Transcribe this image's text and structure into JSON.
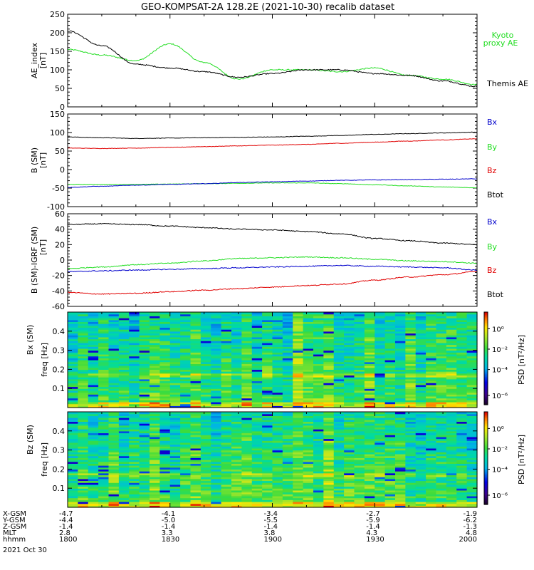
{
  "title": "GEO-KOMPSAT-2A 128.2E (2021-10-30) recalib dataset",
  "colors": {
    "black": "#000000",
    "red": "#e00000",
    "green": "#22dd22",
    "blue": "#0000cc"
  },
  "chart_data": [
    {
      "type": "line",
      "ylabel": "AE_index [nT]",
      "ylim": [
        0,
        250
      ],
      "yticks": [
        "0",
        "50",
        "100",
        "150",
        "200",
        "250"
      ],
      "x": [
        "1800",
        "1810",
        "1820",
        "1830",
        "1840",
        "1850",
        "1900",
        "1910",
        "1920",
        "1930",
        "1940",
        "1950",
        "2000"
      ],
      "series": [
        {
          "name": "Kyoto proxy AE",
          "color": "#22dd22",
          "values": [
            155,
            140,
            125,
            170,
            120,
            75,
            100,
            100,
            95,
            105,
            85,
            75,
            60
          ]
        },
        {
          "name": "Themis AE",
          "color": "#000000",
          "values": [
            205,
            165,
            115,
            105,
            95,
            80,
            90,
            100,
            100,
            90,
            85,
            70,
            55
          ]
        }
      ]
    },
    {
      "type": "line",
      "ylabel": "B (SM) [nT]",
      "ylim": [
        -100,
        150
      ],
      "yticks": [
        "-100",
        "-50",
        "0",
        "50",
        "100",
        "150"
      ],
      "legend": [
        "Bx",
        "By",
        "Bz",
        "Btot"
      ],
      "series": [
        {
          "name": "Btot",
          "color": "#000000",
          "values": [
            88,
            86,
            84,
            85,
            86,
            87,
            88,
            90,
            92,
            95,
            97,
            99,
            101
          ]
        },
        {
          "name": "Bz",
          "color": "#e00000",
          "values": [
            58,
            57,
            58,
            60,
            62,
            64,
            66,
            68,
            71,
            74,
            77,
            80,
            83
          ]
        },
        {
          "name": "By",
          "color": "#22dd22",
          "values": [
            -40,
            -40,
            -40,
            -39,
            -38,
            -37,
            -36,
            -36,
            -38,
            -41,
            -44,
            -47,
            -49
          ]
        },
        {
          "name": "Bx",
          "color": "#0000cc",
          "values": [
            -48,
            -45,
            -42,
            -40,
            -38,
            -35,
            -33,
            -31,
            -29,
            -28,
            -27,
            -26,
            -25
          ]
        }
      ]
    },
    {
      "type": "line",
      "ylabel": "B (SM)-IGRF (SM) [nT]",
      "ylim": [
        -60,
        60
      ],
      "yticks": [
        "-60",
        "-40",
        "-20",
        "0",
        "20",
        "40",
        "60"
      ],
      "legend": [
        "Bx",
        "By",
        "Bz",
        "Btot"
      ],
      "series": [
        {
          "name": "Btot",
          "color": "#000000",
          "values": [
            46,
            47,
            46,
            44,
            42,
            40,
            39,
            37,
            34,
            28,
            25,
            22,
            20
          ]
        },
        {
          "name": "By",
          "color": "#22dd22",
          "values": [
            -11,
            -9,
            -6,
            -4,
            -1,
            2,
            3,
            4,
            3,
            1,
            -1,
            -2,
            -4
          ]
        },
        {
          "name": "Bx",
          "color": "#0000cc",
          "values": [
            -15,
            -14,
            -13,
            -12,
            -11,
            -10,
            -9,
            -8,
            -7,
            -8,
            -9,
            -10,
            -13
          ]
        },
        {
          "name": "Bz",
          "color": "#e00000",
          "values": [
            -42,
            -44,
            -43,
            -41,
            -39,
            -37,
            -35,
            -33,
            -31,
            -26,
            -22,
            -19,
            -15
          ]
        }
      ]
    },
    {
      "type": "heatmap",
      "ylabel": "Bx (SM) freq [Hz]",
      "yticks": [
        "0.1",
        "0.2",
        "0.3",
        "0.4"
      ],
      "ylim": [
        0,
        0.5
      ],
      "colorbar_label": "PSD [nT²/Hz]",
      "colorbar_ticks": [
        "10⁰",
        "10⁻²",
        "10⁻⁴",
        "10⁻⁶"
      ]
    },
    {
      "type": "heatmap",
      "ylabel": "Bz (SM) freq [Hz]",
      "yticks": [
        "0.1",
        "0.2",
        "0.3",
        "0.4"
      ],
      "ylim": [
        0,
        0.5
      ],
      "colorbar_label": "PSD [nT²/Hz]",
      "colorbar_ticks": [
        "10⁰",
        "10⁻²",
        "10⁻⁴",
        "10⁻⁶"
      ]
    }
  ],
  "legend_ae": {
    "kyoto": "Kyoto\nproxy AE",
    "themis": "Themis AE"
  },
  "ephemeris": {
    "row_labels": [
      "X-GSM",
      "Y-GSM",
      "Z-GSM",
      "MLT",
      "hhmm"
    ],
    "columns": [
      [
        "-4.7",
        "-4.4",
        "-1.4",
        "2.8",
        "1800"
      ],
      [
        "-4.1",
        "-5.0",
        "-1.4",
        "3.3",
        "1830"
      ],
      [
        "-3.4",
        "-5.5",
        "-1.4",
        "3.8",
        "1900"
      ],
      [
        "-2.7",
        "-5.9",
        "-1.4",
        "4.3",
        "1930"
      ],
      [
        "-1.9",
        "-6.2",
        "-1.3",
        "4.8",
        "2000"
      ]
    ],
    "date": "2021 Oct 30"
  }
}
